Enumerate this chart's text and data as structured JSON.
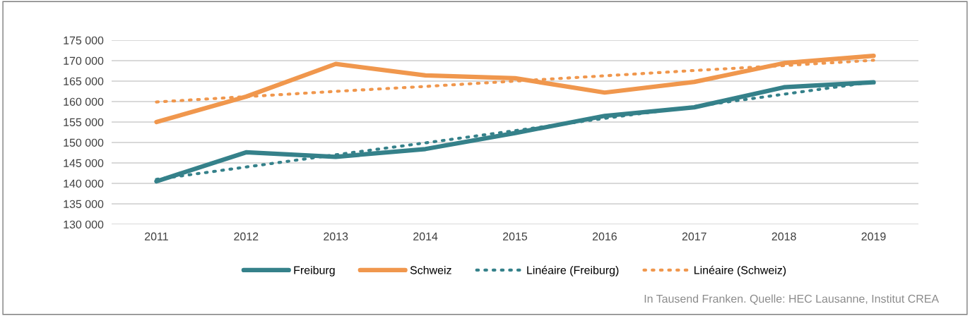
{
  "chart_data": {
    "type": "line",
    "categories": [
      "2011",
      "2012",
      "2013",
      "2014",
      "2015",
      "2016",
      "2017",
      "2018",
      "2019"
    ],
    "series": [
      {
        "name": "Freiburg",
        "color": "#35818a",
        "line_style": "solid",
        "values": [
          140500,
          147600,
          146500,
          148400,
          152300,
          156500,
          158600,
          163500,
          164700
        ]
      },
      {
        "name": "Schweiz",
        "color": "#f0974d",
        "line_style": "solid",
        "values": [
          155000,
          161200,
          169200,
          166400,
          165700,
          162200,
          164800,
          169400,
          171200
        ]
      },
      {
        "name": "Linéaire (Freiburg)",
        "color": "#35818a",
        "line_style": "dotted",
        "values": [
          141000,
          144000,
          147000,
          149900,
          152900,
          155900,
          158800,
          161800,
          164800
        ]
      },
      {
        "name": "Linéaire (Schweiz)",
        "color": "#f0974d",
        "line_style": "dotted",
        "values": [
          159900,
          161200,
          162500,
          163700,
          165000,
          166300,
          167600,
          168800,
          170100
        ]
      }
    ],
    "ylim": [
      130000,
      175000
    ],
    "yticks": [
      {
        "value": 130000,
        "label": "130 000"
      },
      {
        "value": 135000,
        "label": "135 000"
      },
      {
        "value": 140000,
        "label": "140 000"
      },
      {
        "value": 145000,
        "label": "145 000"
      },
      {
        "value": 150000,
        "label": "150 000"
      },
      {
        "value": 155000,
        "label": "155 000"
      },
      {
        "value": 160000,
        "label": "160 000"
      },
      {
        "value": 165000,
        "label": "165 000"
      },
      {
        "value": 170000,
        "label": "170 000"
      },
      {
        "value": 175000,
        "label": "175 000"
      }
    ],
    "grid": "y",
    "legend": "bottom",
    "annotations": [
      "In Tausend Franken. Quelle: HEC Lausanne, Institut CREA"
    ]
  }
}
